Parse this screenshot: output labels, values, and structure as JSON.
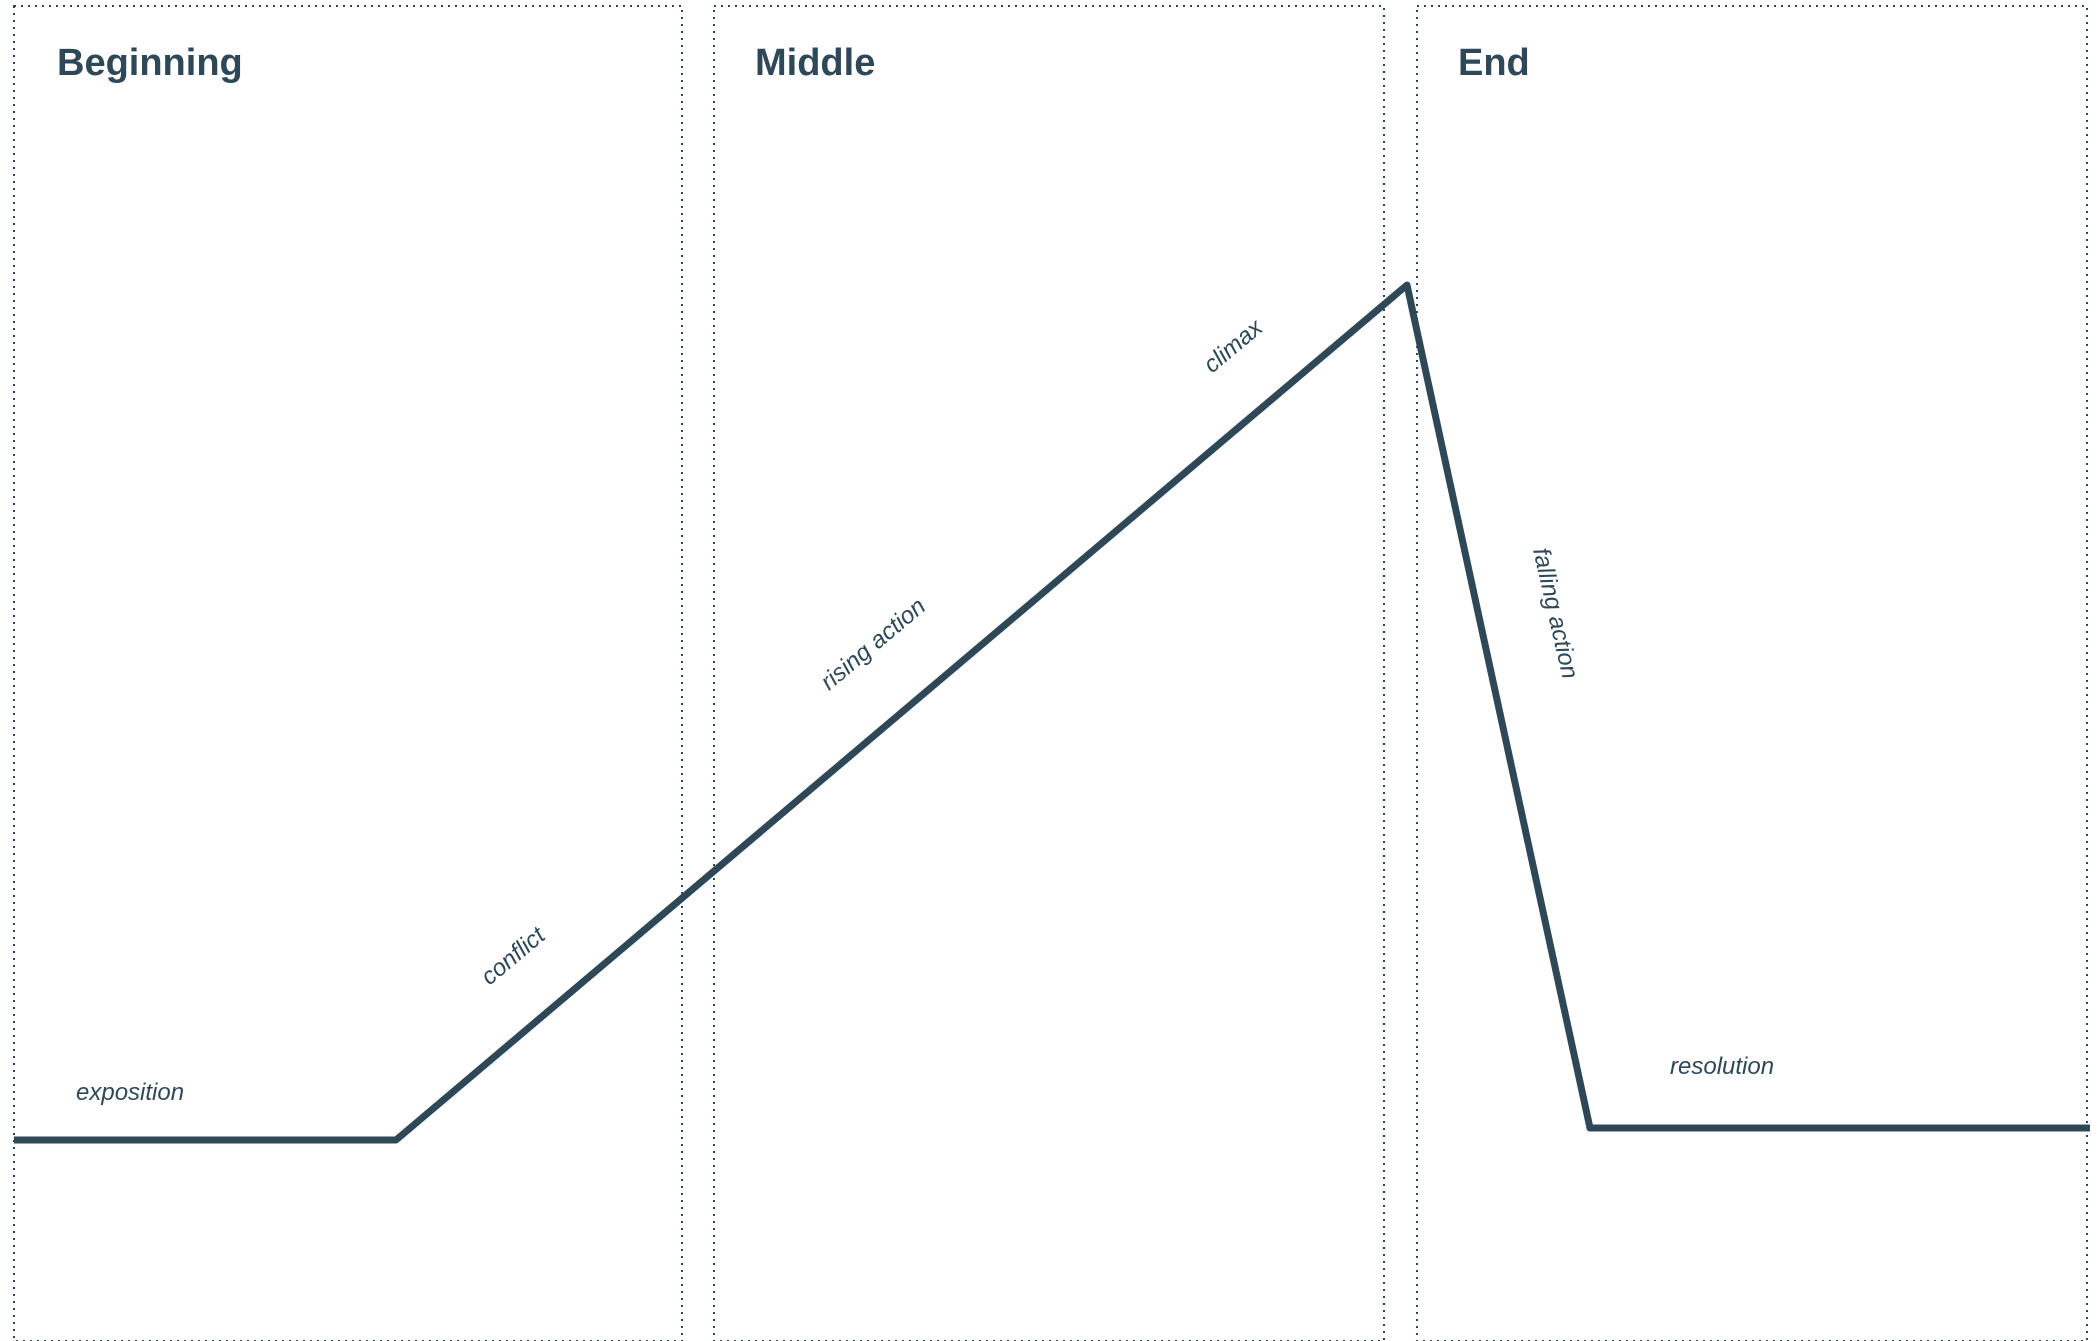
{
  "colors": {
    "ink": "#2f4858",
    "frame": "#2f4858",
    "background": "#ffffff"
  },
  "sections": [
    {
      "id": "beginning",
      "title": "Beginning"
    },
    {
      "id": "middle",
      "title": "Middle"
    },
    {
      "id": "end",
      "title": "End"
    }
  ],
  "stages": [
    {
      "id": "exposition",
      "label": "exposition"
    },
    {
      "id": "conflict",
      "label": "conflict"
    },
    {
      "id": "rising",
      "label": "rising action"
    },
    {
      "id": "climax",
      "label": "climax"
    },
    {
      "id": "falling",
      "label": "falling action"
    },
    {
      "id": "resolution",
      "label": "resolution"
    }
  ]
}
